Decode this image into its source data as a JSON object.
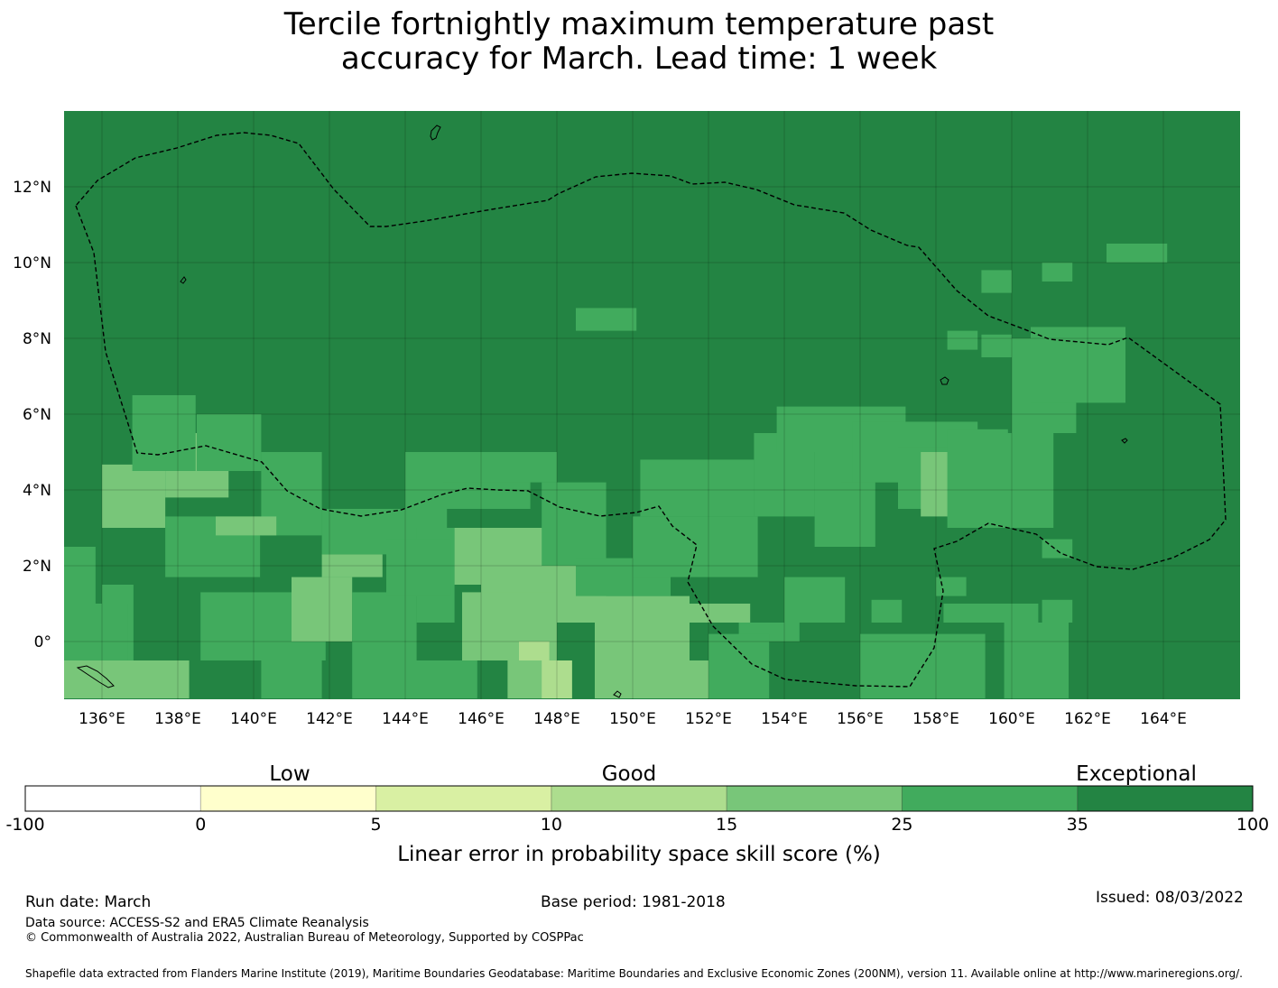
{
  "title_line1": "Tercile fortnightly maximum temperature past",
  "title_line2": "accuracy for March. Lead time: 1 week",
  "map": {
    "lon_ticks": [
      {
        "v": 136,
        "label": "136°E"
      },
      {
        "v": 138,
        "label": "138°E"
      },
      {
        "v": 140,
        "label": "140°E"
      },
      {
        "v": 142,
        "label": "142°E"
      },
      {
        "v": 144,
        "label": "144°E"
      },
      {
        "v": 146,
        "label": "146°E"
      },
      {
        "v": 148,
        "label": "148°E"
      },
      {
        "v": 150,
        "label": "150°E"
      },
      {
        "v": 152,
        "label": "152°E"
      },
      {
        "v": 154,
        "label": "154°E"
      },
      {
        "v": 156,
        "label": "156°E"
      },
      {
        "v": 158,
        "label": "158°E"
      },
      {
        "v": 160,
        "label": "160°E"
      },
      {
        "v": 162,
        "label": "162°E"
      },
      {
        "v": 164,
        "label": "164°E"
      }
    ],
    "lat_ticks": [
      {
        "v": 12,
        "label": "12°N"
      },
      {
        "v": 10,
        "label": "10°N"
      },
      {
        "v": 8,
        "label": "8°N"
      },
      {
        "v": 6,
        "label": "6°N"
      },
      {
        "v": 4,
        "label": "4°N"
      },
      {
        "v": 2,
        "label": "2°N"
      },
      {
        "v": 0,
        "label": "0°"
      }
    ]
  },
  "colorbar": {
    "categories": [
      "Low",
      "Good",
      "Exceptional"
    ],
    "boundaries": [
      "-100",
      "0",
      "5",
      "10",
      "15",
      "25",
      "35",
      "100"
    ],
    "colors": [
      "#ffffff",
      "#ffffcc",
      "#d9f0a3",
      "#addd8e",
      "#78c679",
      "#41ab5d",
      "#238443"
    ],
    "label": "Linear error in probability space skill score (%)"
  },
  "footer": {
    "run_date": "Run date: March",
    "base_period": "Base period: 1981-2018",
    "issued": "Issued: 08/03/2022",
    "data_source": "Data source: ACCESS-S2 and ERA5 Climate Reanalysis",
    "copyright": "© Commonwealth of Australia 2022, Australian Bureau of Meteorology, Supported by COSPPac",
    "shapefile": "Shapefile data extracted from Flanders Marine Institute (2019), Maritime Boundaries Geodatabase: Maritime Boundaries and Exclusive Economic Zones (200NM), version 11. Available online at http://www.marineregions.org/."
  }
}
